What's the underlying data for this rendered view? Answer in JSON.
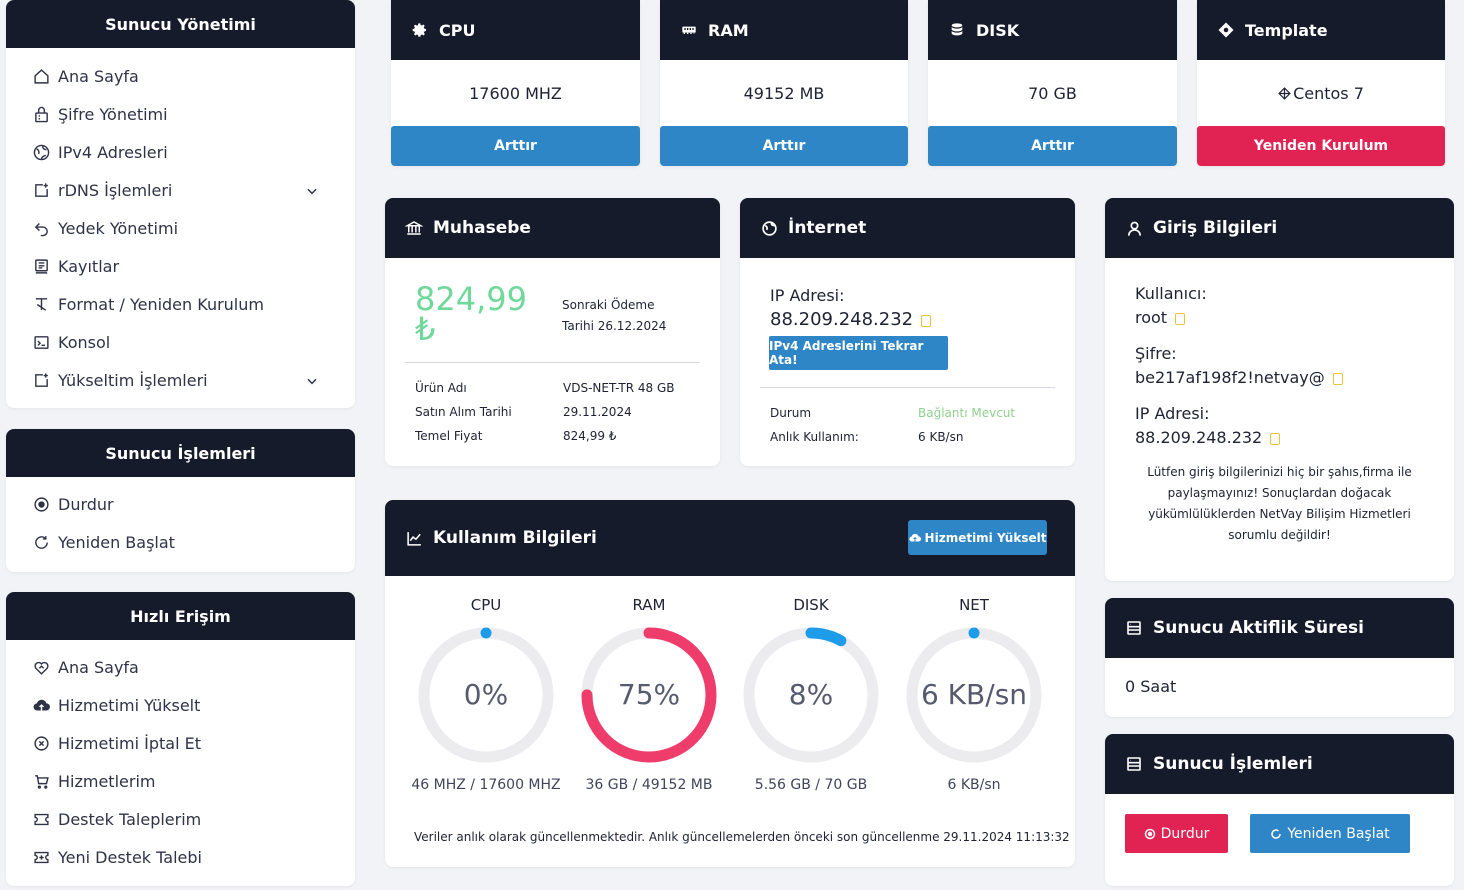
{
  "sidebar_manage": {
    "title": "Sunucu Yönetimi",
    "items": [
      {
        "label": "Ana Sayfa",
        "icon": "home-icon"
      },
      {
        "label": "Şifre Yönetimi",
        "icon": "lock-icon"
      },
      {
        "label": "IPv4 Adresleri",
        "icon": "globe-icon"
      },
      {
        "label": "rDNS İşlemleri",
        "icon": "external-icon"
      },
      {
        "label": "Yedek Yönetimi",
        "icon": "undo-icon"
      },
      {
        "label": "Kayıtlar",
        "icon": "log-icon"
      },
      {
        "label": "Format / Yeniden Kurulum",
        "icon": "format-icon"
      },
      {
        "label": "Konsol",
        "icon": "terminal-icon"
      },
      {
        "label": "Yükseltim İşlemleri",
        "icon": "external-icon"
      }
    ]
  },
  "sidebar_ops": {
    "title": "Sunucu İşlemleri",
    "items": [
      {
        "label": "Durdur",
        "icon": "stop-icon"
      },
      {
        "label": "Yeniden Başlat",
        "icon": "restart-icon"
      }
    ]
  },
  "sidebar_quick": {
    "title": "Hızlı Erişim",
    "items": [
      {
        "label": "Ana Sayfa",
        "icon": "heart-home-icon"
      },
      {
        "label": "Hizmetimi Yükselt",
        "icon": "cloud-upload-icon"
      },
      {
        "label": "Hizmetimi İptal Et",
        "icon": "cancel-icon"
      },
      {
        "label": "Hizmetlerim",
        "icon": "cart-icon"
      },
      {
        "label": "Destek Taleplerim",
        "icon": "ticket-icon"
      },
      {
        "label": "Yeni Destek Talebi",
        "icon": "new-ticket-icon"
      }
    ]
  },
  "tiles": {
    "cpu": {
      "title": "CPU",
      "value": "17600 MHZ",
      "button": "Arttır"
    },
    "ram": {
      "title": "RAM",
      "value": "49152 MB",
      "button": "Arttır"
    },
    "disk": {
      "title": "DISK",
      "value": "70 GB",
      "button": "Arttır"
    },
    "template": {
      "title": "Template",
      "value": "Centos 7",
      "button": "Yeniden Kurulum"
    }
  },
  "accounting": {
    "title": "Muhasebe",
    "amount": "824,99",
    "currency": "₺",
    "next_label": "Sonraki Ödeme",
    "next_date": "Tarihi 26.12.2024",
    "rows": [
      {
        "label": "Ürün Adı",
        "value": "VDS-NET-TR 48 GB"
      },
      {
        "label": "Satın Alım Tarihi",
        "value": "29.11.2024"
      },
      {
        "label": "Temel Fiyat",
        "value": "824,99 ₺"
      }
    ]
  },
  "internet": {
    "title": "İnternet",
    "ip_label": "IP Adresi:",
    "ip_value": "88.209.248.232",
    "reassign_button": "IPv4 Adreslerini Tekrar Ata!",
    "status_label": "Durum",
    "status_value": "Bağlantı Mevcut",
    "usage_label": "Anlık Kullanım:",
    "usage_value": "6 KB/sn"
  },
  "login": {
    "title": "Giriş Bilgileri",
    "user_label": "Kullanıcı:",
    "user_value": "root",
    "pass_label": "Şifre:",
    "pass_value": "be217af198f2!netvay@",
    "ip_label": "IP Adresi:",
    "ip_value": "88.209.248.232",
    "notice": "Lütfen giriş bilgilerinizi hiç bir şahıs,firma ile paylaşmayınız! Sonuçlardan doğacak yükümlülüklerden NetVay Bilişim Hizmetleri sorumlu değildir!"
  },
  "usage": {
    "title": "Kullanım Bilgileri",
    "upgrade_button": "Hizmetimi Yükselt",
    "gauges": [
      {
        "title": "CPU",
        "display": "0%",
        "fraction": 0.0,
        "sub": "46 MHZ / 17600 MHZ",
        "color": "#1e9be9"
      },
      {
        "title": "RAM",
        "display": "75%",
        "fraction": 0.75,
        "sub": "36 GB / 49152 MB",
        "color": "#ef3d6b"
      },
      {
        "title": "DISK",
        "display": "8%",
        "fraction": 0.08,
        "sub": "5.56 GB / 70 GB",
        "color": "#1e9be9"
      },
      {
        "title": "NET",
        "display": "6 KB/sn",
        "fraction": 0.0,
        "sub": "6 KB/sn",
        "color": "#1e9be9"
      }
    ],
    "footer": "Veriler anlık olarak güncellenmektedir. Anlık güncellemelerden önceki son güncellenme 29.11.2024 11:13:32"
  },
  "uptime": {
    "title": "Sunucu Aktiflik Süresi",
    "value": "0 Saat"
  },
  "server_ops": {
    "title": "Sunucu İşlemleri",
    "stop_button": "Durdur",
    "restart_button": "Yeniden Başlat"
  },
  "colors": {
    "header": "#161b2b",
    "blue": "#2f86c6",
    "red": "#e02352",
    "green_amount": "#6fd89a",
    "status_green": "#8fd08f"
  }
}
